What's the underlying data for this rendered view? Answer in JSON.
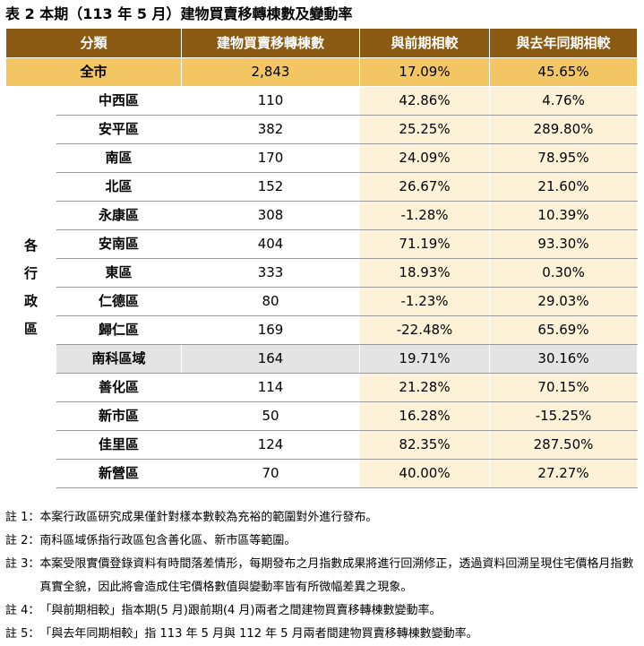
{
  "title": "表 2 本期（113 年 5 月）建物買賣移轉棟數及變動率",
  "headers": {
    "category": "分類",
    "count": "建物買賣移轉棟數",
    "prev_period": "與前期相較",
    "prev_year": "與去年同期相較"
  },
  "total": {
    "name": "全市",
    "count": "2,843",
    "prev_period": "17.09%",
    "prev_year": "45.65%"
  },
  "group_label": [
    "各",
    "行",
    "政",
    "區"
  ],
  "rows": [
    {
      "name": "中西區",
      "count": "110",
      "prev_period": "42.86%",
      "prev_year": "4.76%"
    },
    {
      "name": "安平區",
      "count": "382",
      "prev_period": "25.25%",
      "prev_year": "289.80%"
    },
    {
      "name": "南區",
      "count": "170",
      "prev_period": "24.09%",
      "prev_year": "78.95%"
    },
    {
      "name": "北區",
      "count": "152",
      "prev_period": "26.67%",
      "prev_year": "21.60%"
    },
    {
      "name": "永康區",
      "count": "308",
      "prev_period": "-1.28%",
      "prev_year": "10.39%"
    },
    {
      "name": "安南區",
      "count": "404",
      "prev_period": "71.19%",
      "prev_year": "93.30%"
    },
    {
      "name": "東區",
      "count": "333",
      "prev_period": "18.93%",
      "prev_year": "0.30%"
    },
    {
      "name": "仁德區",
      "count": "80",
      "prev_period": "-1.23%",
      "prev_year": "29.03%"
    },
    {
      "name": "歸仁區",
      "count": "169",
      "prev_period": "-22.48%",
      "prev_year": "65.69%"
    },
    {
      "name": "南科區域",
      "count": "164",
      "prev_period": "19.71%",
      "prev_year": "30.16%"
    },
    {
      "name": "善化區",
      "count": "114",
      "prev_period": "21.28%",
      "prev_year": "70.15%"
    },
    {
      "name": "新市區",
      "count": "50",
      "prev_period": "16.28%",
      "prev_year": "-15.25%"
    },
    {
      "name": "佳里區",
      "count": "124",
      "prev_period": "82.35%",
      "prev_year": "287.50%"
    },
    {
      "name": "新營區",
      "count": "70",
      "prev_period": "40.00%",
      "prev_year": "27.27%"
    }
  ],
  "notes": [
    {
      "label": "註 1：",
      "text": "本案行政區研究成果僅針對樣本數較為充裕的範圍對外進行發布。"
    },
    {
      "label": "註 2：",
      "text": "南科區域係指行政區包含善化區、新市區等範圍。"
    },
    {
      "label": "註 3：",
      "text": "本案受限實價登錄資料有時間落差情形，每期發布之月指數成果將進行回溯修正，透過資料回溯呈現住宅價格月指數真實全貌，因此將會造成住宅價格數值與變動率皆有所微幅差異之現象。"
    },
    {
      "label": "註 4：",
      "text": "「與前期相較」指本期(5 月)跟前期(4 月)兩者之間建物買賣移轉棟數變動率。"
    },
    {
      "label": "註 5：",
      "text": "「與去年同期相較」指 113 年 5 月與 112 年 5 月兩者間建物買賣移轉棟數變動率。"
    }
  ],
  "colors": {
    "header_bg": "#8c5b13",
    "total_bg": "#f3c663",
    "pct_bg": "#fdf2d7",
    "highlight_row_bg": "#e4e4e4"
  }
}
